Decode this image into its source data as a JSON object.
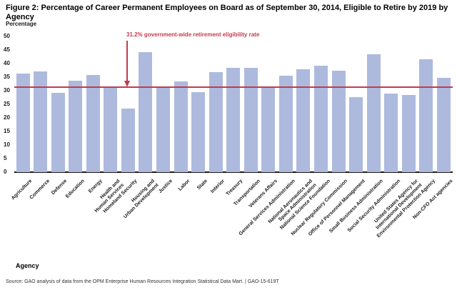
{
  "header": {
    "title": "Figure 2: Percentage of Career Permanent Employees on Board as of September 30, 2014, Eligible to Retire by 2019 by Agency",
    "title_lines": [
      "Figure 2: Percentage of Career Permanent Employees on Board as of September 30, 2014, Eligible to Retire by 2019 by",
      "Agency"
    ]
  },
  "axes": {
    "y_title": "Percentage",
    "x_title": "Agency"
  },
  "footer": {
    "source": "Source: GAO analysis of data from the OPM Enterprise Human Resources Integration Statistical Data Mart.  |  GAO-15-619T"
  },
  "chart_data": {
    "type": "bar",
    "title": "Figure 2: Percentage of Career Permanent Employees on Board as of September 30, 2014, Eligible to Retire by 2019 by Agency",
    "xlabel": "Agency",
    "ylabel": "Percentage",
    "ylim": [
      0,
      50
    ],
    "ytick_step": 5,
    "grid": false,
    "legend": false,
    "bar_color": "#adbade",
    "categories": [
      "Agriculture",
      "Commerce",
      "Defense",
      "Education",
      "Energy",
      "Health and\nHuman Services",
      "Homeland Security",
      "Housing and\nUrban Development",
      "Justice",
      "Labor",
      "State",
      "Interior",
      "Treasury",
      "Transportation",
      "Veterans Affairs",
      "General Services Administration",
      "National Aeronautics and\nSpace Administration",
      "National Science Foundation",
      "Nuclear Regulatory Commission",
      "Office of Personnel Management",
      "Small Business Administration",
      "Social Security Administration",
      "United States Agency for\nInternational Development",
      "Environmental Protection Agency",
      "Non-CFO Act agencies"
    ],
    "values": [
      36.3,
      37.2,
      29.3,
      33.8,
      35.9,
      31.4,
      23.3,
      44.2,
      31.3,
      33.5,
      29.5,
      36.8,
      38.4,
      38.3,
      31.5,
      35.4,
      38.0,
      39.3,
      37.4,
      27.7,
      43.5,
      29.0,
      28.4,
      41.6,
      34.8
    ],
    "reference_line": {
      "value": 31.2,
      "label": "31.2% government-wide retirement eligibility rate",
      "color": "#c23b4e"
    }
  }
}
